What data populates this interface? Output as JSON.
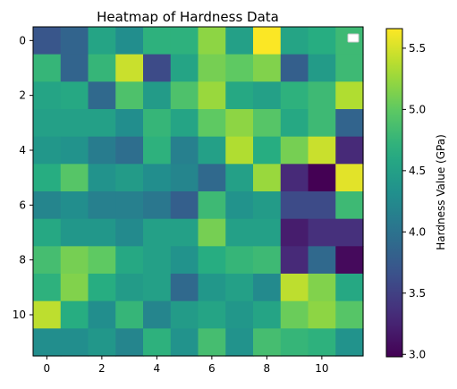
{
  "chart_data": {
    "type": "heatmap",
    "title": "Heatmap of Hardness Data",
    "colorbar_label": "Hardness Value (GPa)",
    "colormap": "viridis",
    "vmin": 2.98,
    "vmax": 5.66,
    "rows": 12,
    "cols": 12,
    "x_ticks": [
      "0",
      "2",
      "4",
      "6",
      "8",
      "10"
    ],
    "y_ticks": [
      "0",
      "2",
      "4",
      "6",
      "8",
      "10"
    ],
    "colorbar_ticks": [
      "3.0",
      "3.5",
      "4.0",
      "4.5",
      "5.0",
      "5.5"
    ],
    "legend_placement": "top-right",
    "values": [
      [
        3.7,
        3.85,
        4.55,
        4.3,
        4.7,
        4.7,
        5.2,
        4.5,
        5.65,
        4.55,
        4.65,
        4.8
      ],
      [
        4.75,
        3.85,
        4.75,
        5.45,
        3.6,
        4.55,
        5.1,
        5.0,
        5.15,
        3.8,
        4.45,
        4.8
      ],
      [
        4.55,
        4.6,
        3.9,
        4.9,
        4.45,
        4.9,
        5.25,
        4.6,
        4.5,
        4.7,
        4.8,
        5.35
      ],
      [
        4.5,
        4.5,
        4.5,
        4.3,
        4.75,
        4.55,
        5.0,
        5.2,
        4.95,
        4.6,
        4.8,
        3.85
      ],
      [
        4.4,
        4.35,
        4.1,
        3.95,
        4.7,
        4.15,
        4.5,
        5.35,
        4.65,
        5.1,
        5.45,
        3.3
      ],
      [
        4.65,
        4.95,
        4.35,
        4.45,
        4.3,
        4.2,
        3.9,
        4.5,
        5.25,
        3.3,
        2.98,
        5.55
      ],
      [
        4.2,
        4.3,
        4.15,
        4.15,
        4.05,
        3.8,
        4.8,
        4.35,
        4.45,
        3.6,
        3.6,
        4.8
      ],
      [
        4.6,
        4.4,
        4.4,
        4.25,
        4.5,
        4.5,
        5.1,
        4.5,
        4.5,
        3.2,
        3.35,
        3.35
      ],
      [
        4.85,
        5.1,
        5.0,
        4.6,
        4.5,
        4.35,
        4.65,
        4.75,
        4.8,
        3.3,
        3.9,
        3.05
      ],
      [
        4.7,
        5.15,
        4.65,
        4.45,
        4.5,
        3.9,
        4.4,
        4.5,
        4.25,
        5.4,
        5.15,
        4.6
      ],
      [
        5.4,
        4.65,
        4.3,
        4.75,
        4.2,
        4.45,
        4.55,
        4.4,
        4.55,
        5.05,
        5.2,
        4.95
      ],
      [
        4.3,
        4.3,
        4.4,
        4.2,
        4.7,
        4.35,
        4.85,
        4.35,
        4.85,
        4.75,
        4.7,
        4.35
      ]
    ]
  }
}
